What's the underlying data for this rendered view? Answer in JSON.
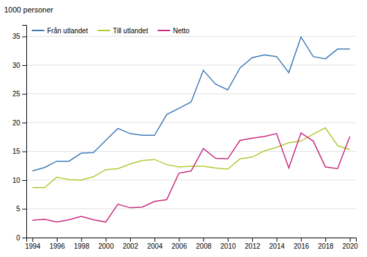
{
  "chart_data": {
    "type": "line",
    "ylabel": "1000 personer",
    "x": [
      1994,
      1995,
      1996,
      1997,
      1998,
      1999,
      2000,
      2001,
      2002,
      2003,
      2004,
      2005,
      2006,
      2007,
      2008,
      2009,
      2010,
      2011,
      2012,
      2013,
      2014,
      2015,
      2016,
      2017,
      2018,
      2019,
      2020
    ],
    "series": [
      {
        "name": "Från utlandet",
        "color": "#3c78b4",
        "values": [
          11.6,
          12.2,
          13.3,
          13.3,
          14.7,
          14.8,
          16.9,
          19.0,
          18.1,
          17.8,
          17.8,
          21.4,
          22.5,
          23.6,
          29.1,
          26.7,
          25.7,
          29.5,
          31.3,
          31.8,
          31.5,
          28.7,
          34.9,
          31.5,
          31.1,
          32.8,
          32.8
        ]
      },
      {
        "name": "Till utlandet",
        "color": "#b4c832",
        "values": [
          8.7,
          8.7,
          10.5,
          10.1,
          10.0,
          10.6,
          11.8,
          12.0,
          12.8,
          13.4,
          13.6,
          12.7,
          12.3,
          12.4,
          12.4,
          12.1,
          11.9,
          13.7,
          14.0,
          15.1,
          15.7,
          16.5,
          16.8,
          18.0,
          19.1,
          16.0,
          15.3
        ]
      },
      {
        "name": "Netto",
        "color": "#c8287d",
        "values": [
          3.0,
          3.2,
          2.7,
          3.1,
          3.7,
          3.1,
          2.7,
          5.8,
          5.2,
          5.3,
          6.3,
          6.6,
          11.2,
          11.6,
          15.5,
          13.8,
          13.7,
          16.9,
          17.3,
          17.6,
          18.1,
          12.1,
          18.2,
          16.8,
          12.3,
          12.0,
          17.6
        ]
      }
    ],
    "xlim": [
      1993.5,
      2020.5
    ],
    "xticks": [
      1994,
      1996,
      1998,
      2000,
      2002,
      2004,
      2006,
      2008,
      2010,
      2012,
      2014,
      2016,
      2018,
      2020
    ],
    "ylim": [
      0,
      37
    ],
    "yticks": [
      0,
      5,
      10,
      15,
      20,
      25,
      30,
      35
    ],
    "grid": true,
    "legend": "upper left"
  }
}
